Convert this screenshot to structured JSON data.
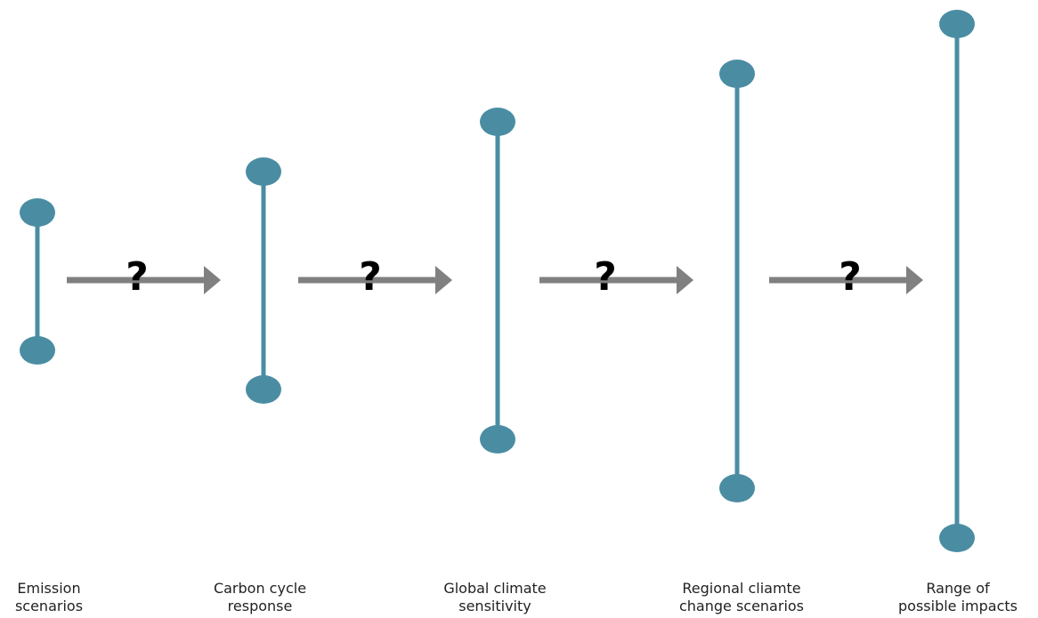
{
  "colors": {
    "uncertainty_bar": "#4a8da3",
    "arrow": "#808080",
    "question_mark": "#000000",
    "label_text": "#222222"
  },
  "stages": [
    {
      "label_line1": "Emission",
      "label_line2": "scenarios"
    },
    {
      "label_line1": "Carbon cycle",
      "label_line2": "response"
    },
    {
      "label_line1": "Global climate",
      "label_line2": "sensitivity"
    },
    {
      "label_line1": "Regional cliamte",
      "label_line2": "change scenarios"
    },
    {
      "label_line1": "Range of",
      "label_line2": "possible impacts"
    }
  ],
  "arrows": [
    {
      "symbol": "?"
    },
    {
      "symbol": "?"
    },
    {
      "symbol": "?"
    },
    {
      "symbol": "?"
    }
  ]
}
